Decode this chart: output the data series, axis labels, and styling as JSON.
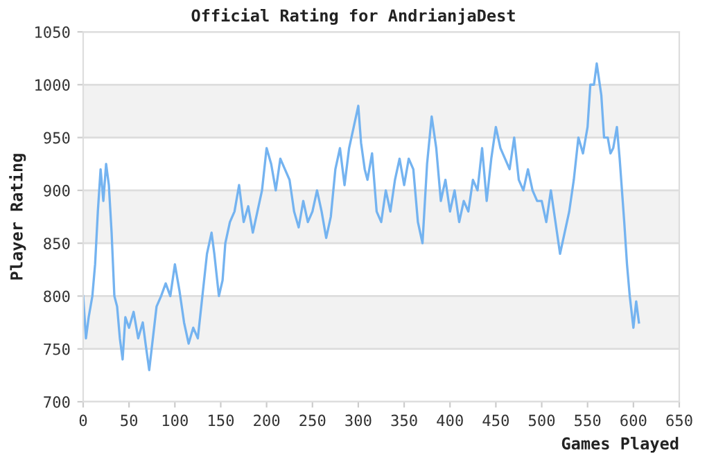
{
  "chart_data": {
    "type": "line",
    "title": "Official Rating for AndrianjaDest",
    "xlabel": "Games Played",
    "ylabel": "Player Rating",
    "xlim": [
      0,
      650
    ],
    "xticks": [
      0,
      50,
      100,
      150,
      200,
      250,
      300,
      350,
      400,
      450,
      500,
      550,
      600,
      650
    ],
    "ylim": [
      700,
      1050
    ],
    "yticks": [
      700,
      750,
      800,
      850,
      900,
      950,
      1000,
      1050
    ],
    "grid": "y",
    "bands": [
      {
        "axis": "y",
        "from": 750,
        "to": 800,
        "color": "#f2f2f2"
      },
      {
        "axis": "y",
        "from": 850,
        "to": 900,
        "color": "#f2f2f2"
      },
      {
        "axis": "y",
        "from": 950,
        "to": 1000,
        "color": "#f2f2f2"
      }
    ],
    "series": [
      {
        "color": "#74b3f0",
        "x": [
          0,
          3,
          6,
          10,
          13,
          16,
          19,
          22,
          25,
          28,
          31,
          34,
          37,
          40,
          43,
          46,
          50,
          55,
          60,
          65,
          68,
          72,
          76,
          80,
          85,
          90,
          95,
          100,
          105,
          110,
          115,
          120,
          125,
          130,
          135,
          140,
          143,
          148,
          152,
          155,
          160,
          165,
          170,
          175,
          180,
          185,
          190,
          195,
          200,
          205,
          210,
          215,
          220,
          225,
          230,
          235,
          240,
          245,
          250,
          255,
          260,
          265,
          270,
          275,
          280,
          285,
          290,
          295,
          300,
          303,
          307,
          310,
          315,
          320,
          325,
          330,
          335,
          340,
          345,
          350,
          355,
          360,
          365,
          370,
          375,
          380,
          385,
          390,
          395,
          400,
          405,
          410,
          415,
          420,
          425,
          430,
          435,
          440,
          445,
          450,
          455,
          460,
          465,
          470,
          475,
          480,
          485,
          490,
          495,
          500,
          505,
          510,
          515,
          520,
          525,
          530,
          535,
          540,
          545,
          550,
          553,
          557,
          560,
          565,
          568,
          572,
          575,
          578,
          582,
          585,
          590,
          593,
          596,
          600,
          603,
          606
        ],
        "values": [
          800,
          760,
          780,
          800,
          830,
          880,
          920,
          890,
          925,
          905,
          860,
          800,
          790,
          760,
          740,
          780,
          770,
          785,
          760,
          775,
          755,
          730,
          760,
          790,
          800,
          812,
          800,
          830,
          805,
          775,
          755,
          770,
          760,
          800,
          840,
          860,
          840,
          800,
          815,
          850,
          870,
          880,
          905,
          870,
          885,
          860,
          880,
          900,
          940,
          925,
          900,
          930,
          920,
          910,
          880,
          865,
          890,
          870,
          880,
          900,
          880,
          855,
          875,
          920,
          940,
          905,
          940,
          960,
          980,
          945,
          920,
          910,
          935,
          880,
          870,
          900,
          880,
          910,
          930,
          905,
          930,
          920,
          870,
          850,
          925,
          970,
          940,
          890,
          910,
          880,
          900,
          870,
          890,
          880,
          910,
          900,
          940,
          890,
          930,
          960,
          940,
          930,
          920,
          950,
          910,
          900,
          920,
          900,
          890,
          890,
          870,
          900,
          870,
          840,
          860,
          880,
          910,
          950,
          935,
          960,
          1000,
          1000,
          1020,
          990,
          950,
          950,
          935,
          940,
          960,
          930,
          870,
          830,
          800,
          770,
          795,
          775
        ]
      }
    ]
  }
}
